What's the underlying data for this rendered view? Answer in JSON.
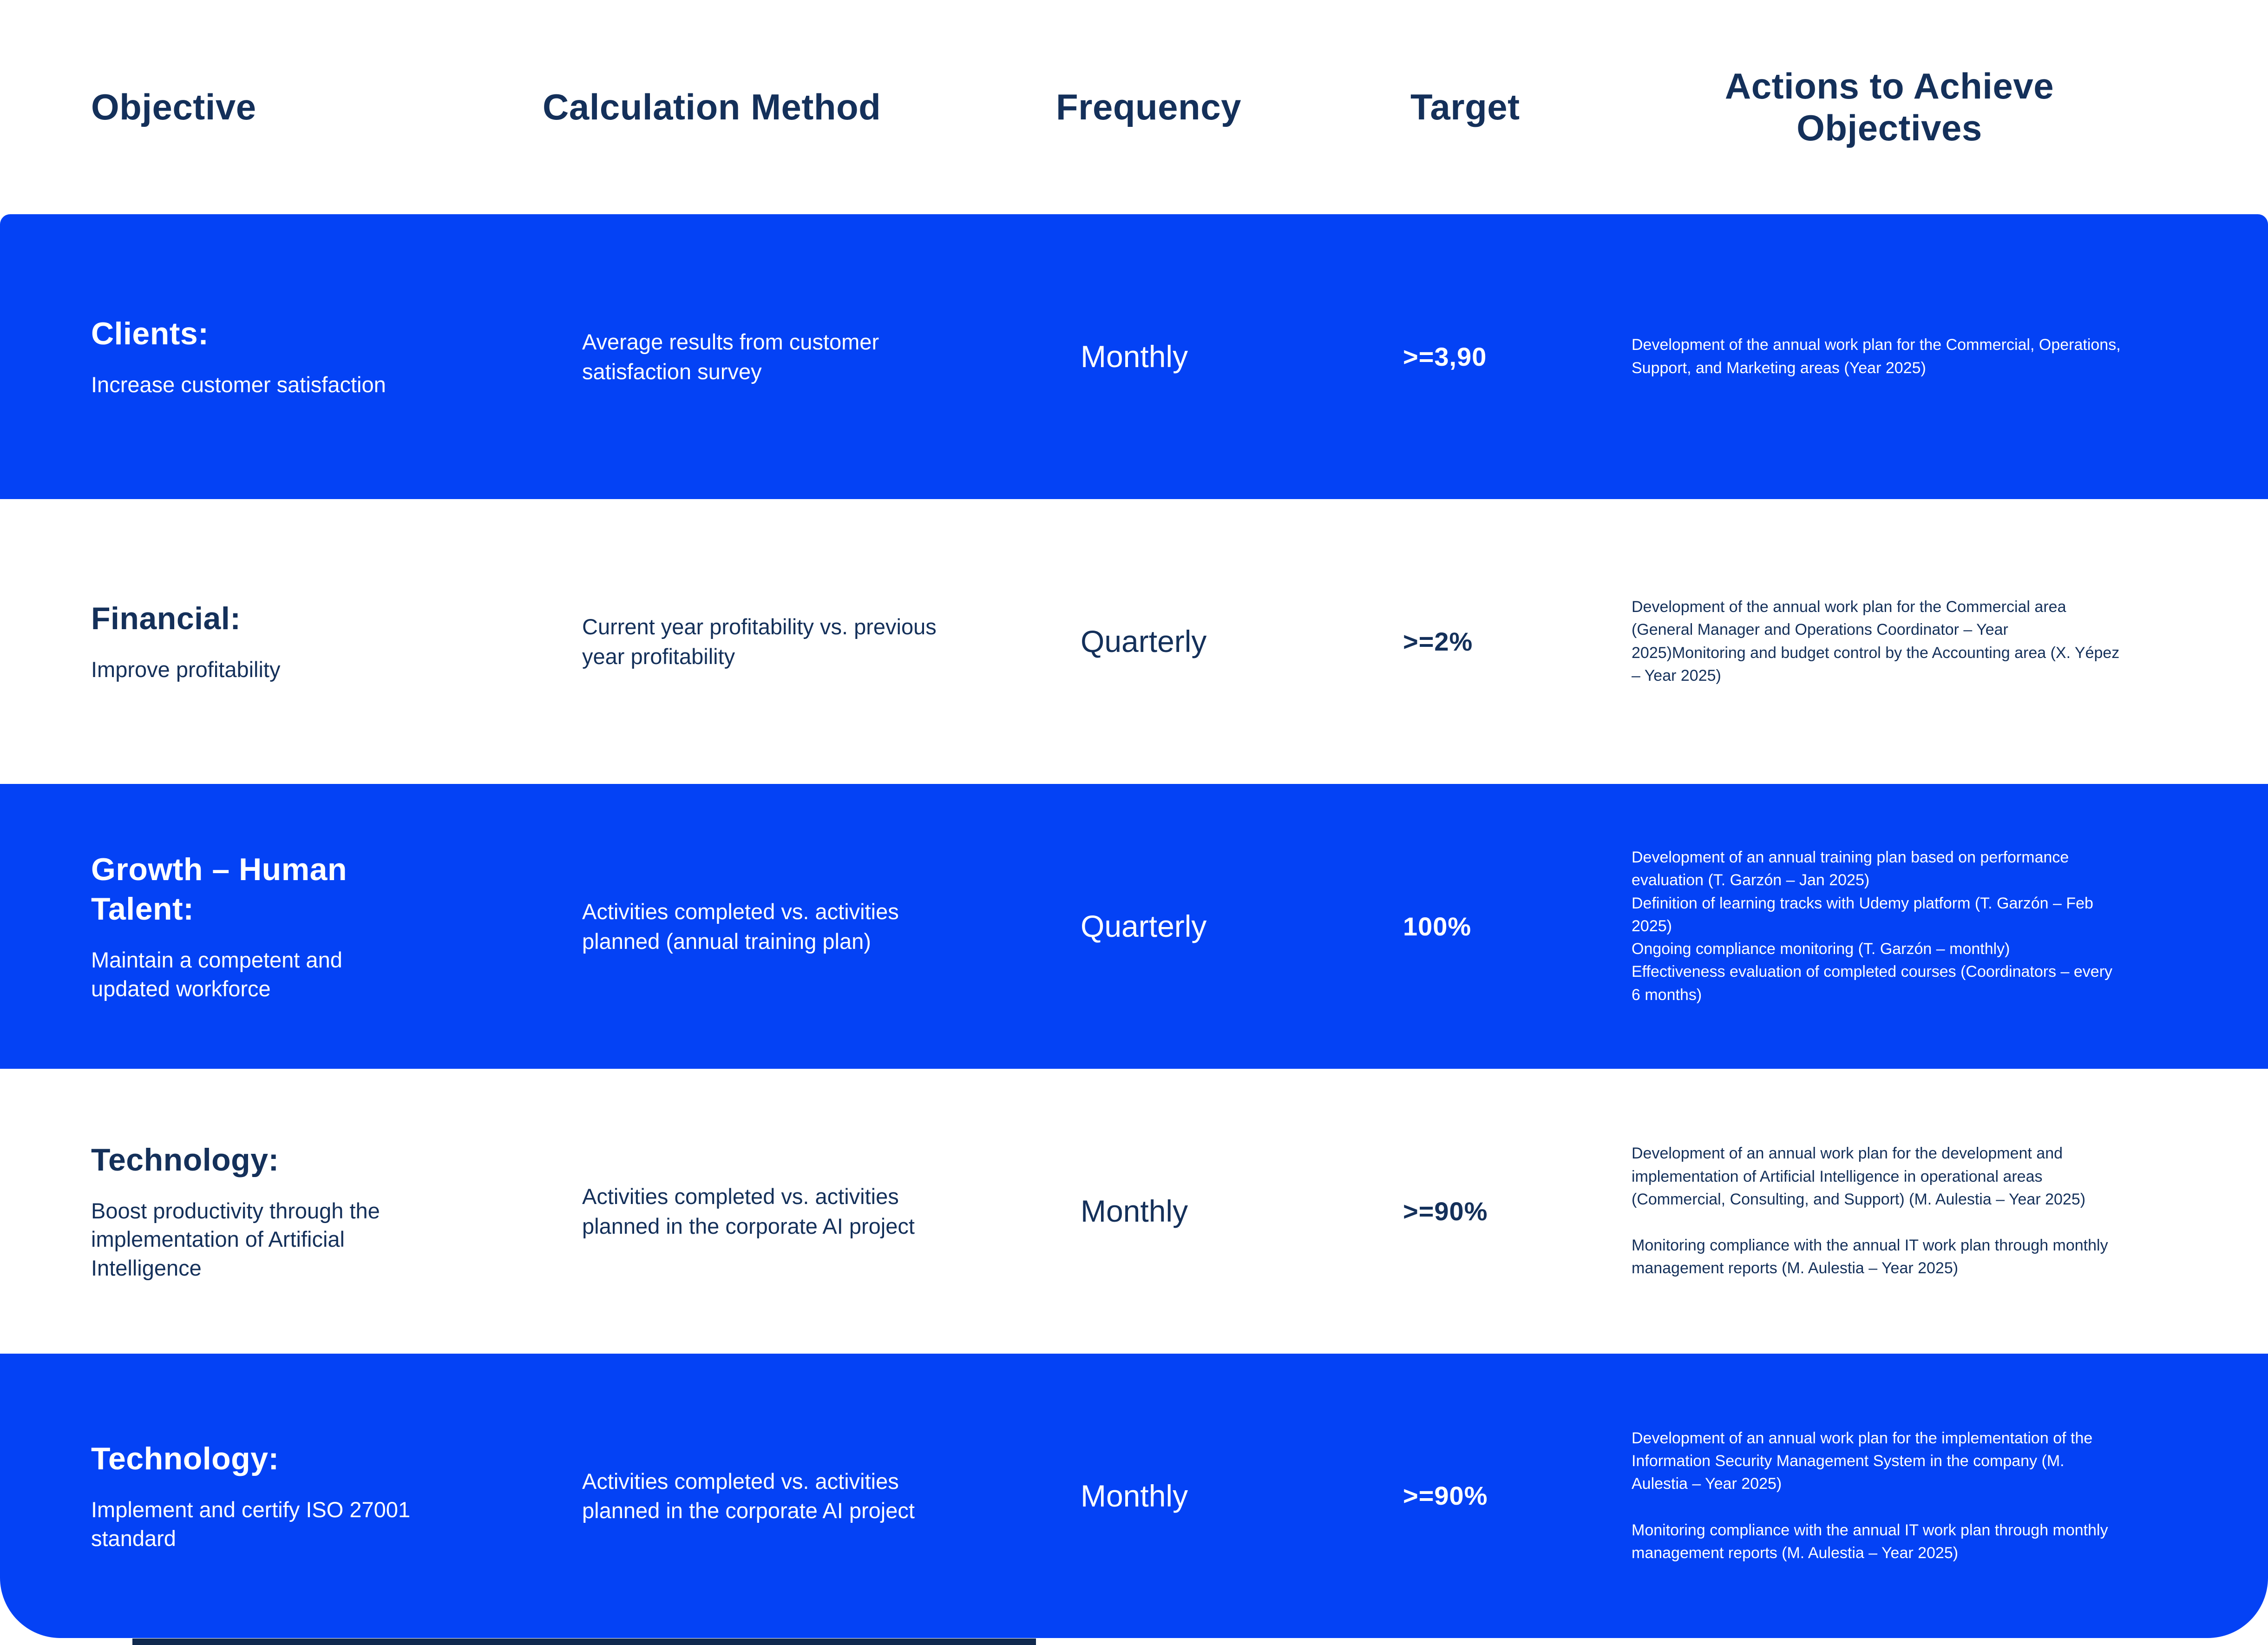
{
  "page": {
    "accent_blue": "#0442F5",
    "navy_text": "#14305A",
    "footer_bar_color": "#10294E"
  },
  "header": {
    "objective": "Objective",
    "calculation_method": "Calculation Method",
    "frequency": "Frequency",
    "target": "Target",
    "actions": "Actions to Achieve Objectives"
  },
  "rows": [
    {
      "style": "blue",
      "objective_title": "Clients:",
      "objective_desc": "Increase customer satisfaction",
      "calculation": "Average results from customer satisfaction survey",
      "frequency": "Monthly",
      "target": ">=3,90",
      "actions": [
        "Development of the annual work plan for the Commercial, Operations, Support, and Marketing areas (Year 2025)"
      ]
    },
    {
      "style": "white",
      "objective_title": "Financial:",
      "objective_desc": "Improve profitability",
      "calculation": "Current year profitability vs. previous year profitability",
      "frequency": "Quarterly",
      "target": ">=2%",
      "actions": [
        "Development of the annual work plan for the Commercial area (General Manager and Operations Coordinator – Year 2025)Monitoring and budget control by the Accounting area (X. Yépez – Year 2025)"
      ]
    },
    {
      "style": "blue",
      "objective_title": "Growth – Human Talent:",
      "objective_desc": "Maintain a competent and updated workforce",
      "calculation": "Activities completed vs. activities planned (annual training plan)",
      "frequency": "Quarterly",
      "target": "100%",
      "actions": [
        "Development of an annual training plan based on performance evaluation (T. Garzón – Jan 2025)",
        "Definition of learning tracks with Udemy platform (T. Garzón – Feb 2025)",
        "Ongoing compliance monitoring (T. Garzón – monthly)",
        "Effectiveness evaluation of completed courses (Coordinators – every 6 months)"
      ]
    },
    {
      "style": "white",
      "objective_title": "Technology:",
      "objective_desc": "Boost productivity through the implementation of Artificial Intelligence",
      "calculation": "Activities completed vs. activities planned in the corporate AI project",
      "frequency": "Monthly",
      "target": ">=90%",
      "actions": [
        "Development of an annual work plan for the development and implementation of Artificial Intelligence in operational areas (Commercial, Consulting, and Support) (M. Aulestia – Year 2025)",
        "Monitoring compliance with the annual IT work plan through monthly management reports (M. Aulestia – Year 2025)"
      ]
    },
    {
      "style": "blue",
      "objective_title": "Technology:",
      "objective_desc": "Implement and certify ISO 27001 standard",
      "calculation": "Activities completed vs. activities planned in the corporate AI project",
      "frequency": "Monthly",
      "target": ">=90%",
      "actions": [
        "Development of an annual work plan for the implementation of the Information Security Management System in the company (M. Aulestia – Year 2025)",
        "Monitoring compliance with the annual IT work plan through monthly management reports (M. Aulestia – Year 2025)"
      ]
    }
  ]
}
